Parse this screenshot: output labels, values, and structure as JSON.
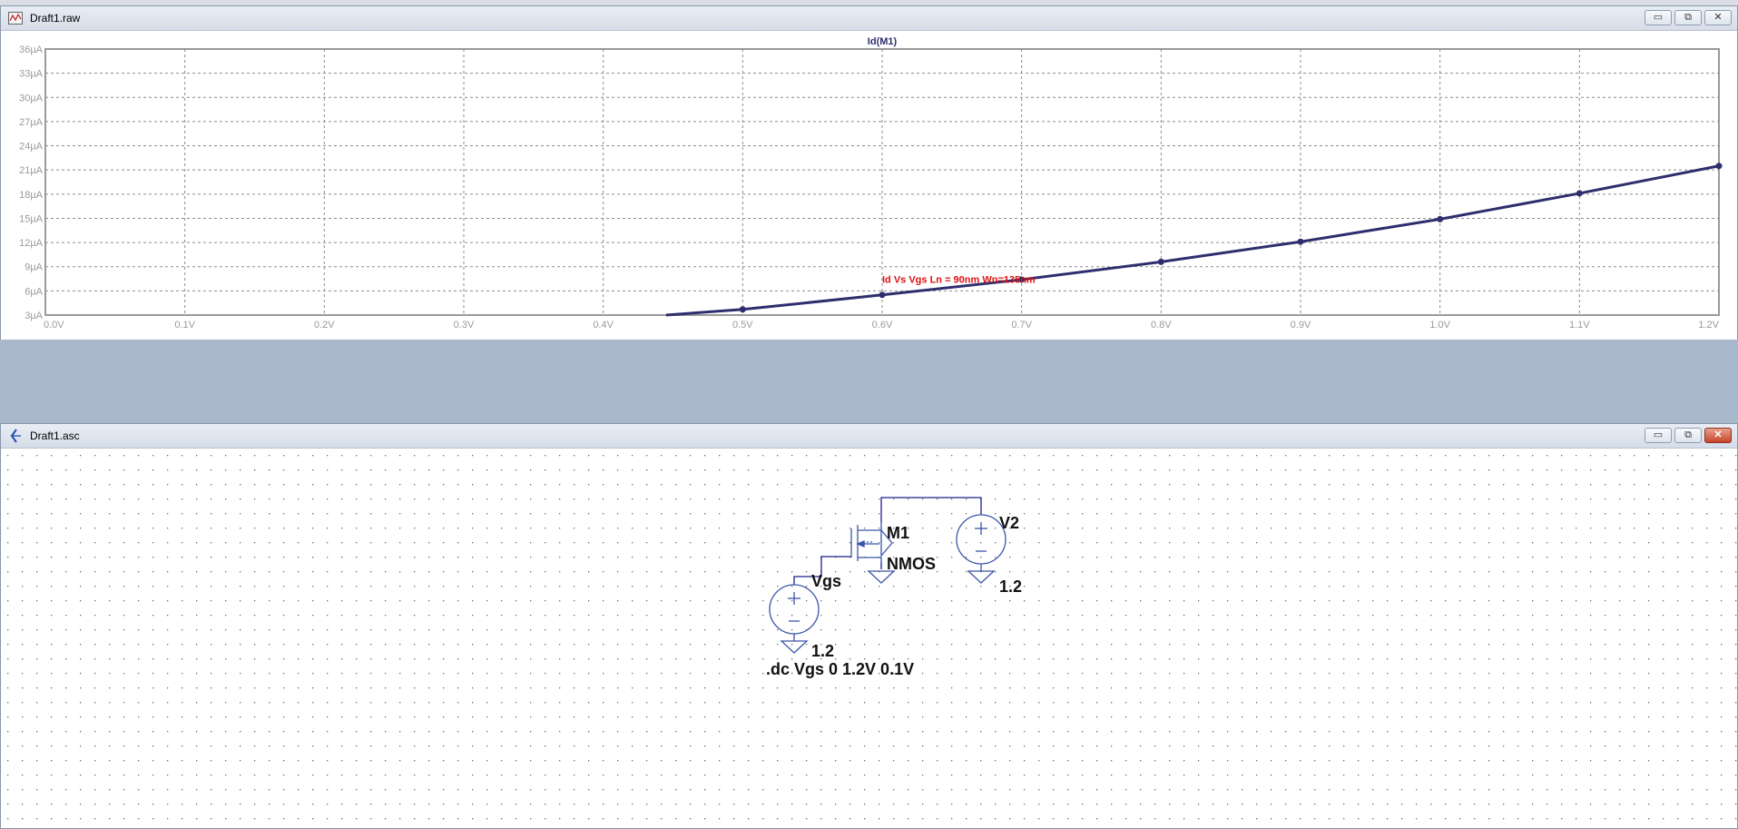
{
  "plot_window": {
    "title": "Draft1.raw",
    "buttons": {
      "minimize": "▭",
      "restore": "⧉",
      "close": "✕"
    }
  },
  "schematic_window": {
    "title": "Draft1.asc",
    "buttons": {
      "minimize": "▭",
      "restore": "⧉",
      "close": "✕"
    }
  },
  "chart_data": {
    "type": "line",
    "title": "Id(M1)",
    "xlabel": "",
    "ylabel": "",
    "xlim": [
      0.0,
      1.2
    ],
    "ylim": [
      3,
      36
    ],
    "x_tick_values": [
      0.0,
      0.1,
      0.2,
      0.3,
      0.4,
      0.5,
      0.6,
      0.7,
      0.8,
      0.9,
      1.0,
      1.1,
      1.2
    ],
    "x_tick_labels": [
      "0.0V",
      "0.1V",
      "0.2V",
      "0.3V",
      "0.4V",
      "0.5V",
      "0.6V",
      "0.7V",
      "0.8V",
      "0.9V",
      "1.0V",
      "1.1V",
      "1.2V"
    ],
    "y_tick_values": [
      3,
      6,
      9,
      12,
      15,
      18,
      21,
      24,
      27,
      30,
      33,
      36
    ],
    "y_tick_labels": [
      "3µA",
      "6µA",
      "9µA",
      "12µA",
      "15µA",
      "18µA",
      "21µA",
      "24µA",
      "27µA",
      "30µA",
      "33µA",
      "36µA"
    ],
    "grid": true,
    "series": [
      {
        "name": "Id(M1)",
        "color": "#2e2e6e",
        "x": [
          0.445,
          0.5,
          0.6,
          0.7,
          0.8,
          0.9,
          1.0,
          1.1,
          1.2
        ],
        "y": [
          3.0,
          3.7,
          5.5,
          7.4,
          9.6,
          12.1,
          14.9,
          18.1,
          21.5
        ]
      }
    ],
    "annotation": {
      "text": "Id Vs Vgs  Ln = 90nm Wn=135nm",
      "color": "#e01010"
    }
  },
  "schematic": {
    "mosfet_name": "M1",
    "mosfet_model": "NMOS",
    "source_vgs_name": "Vgs",
    "source_vgs_value": "1.2",
    "source_v2_name": "V2",
    "source_v2_value": "1.2",
    "directive": ".dc Vgs 0 1.2V 0.1V",
    "wire_color": "#1f1f8a",
    "symbol_color": "#3a55a8"
  }
}
